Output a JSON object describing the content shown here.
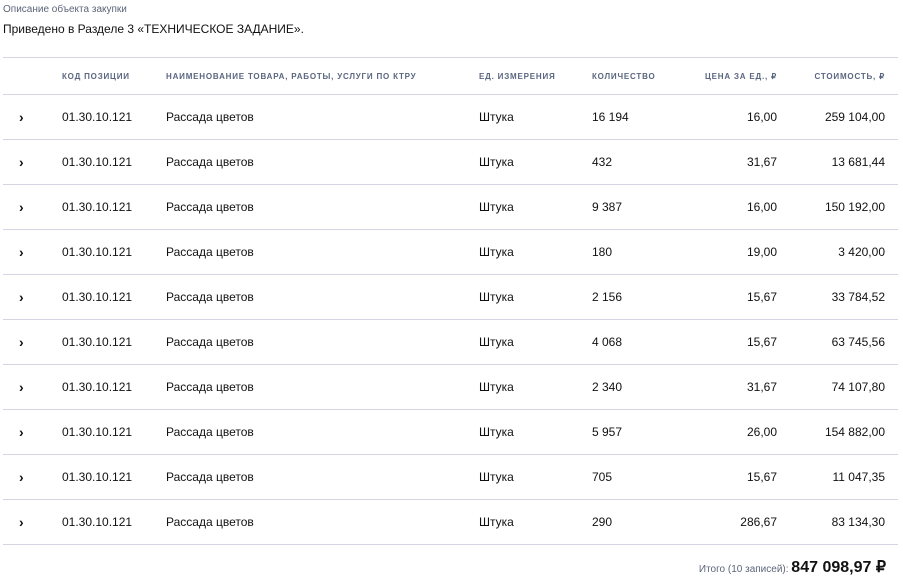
{
  "section": {
    "caption": "Описание объекта закупки",
    "text": "Приведено в Разделе 3 «ТЕХНИЧЕСКОЕ ЗАДАНИЕ»."
  },
  "table": {
    "headers": {
      "code": "КОД ПОЗИЦИИ",
      "name": "НАИМЕНОВАНИЕ ТОВАРА, РАБОТЫ, УСЛУГИ ПО КТРУ",
      "unit": "ЕД. ИЗМЕРЕНИЯ",
      "qty": "КОЛИЧЕСТВО",
      "price": "ЦЕНА ЗА ЕД., ₽",
      "cost": "СТОИМОСТЬ, ₽"
    },
    "rows": [
      {
        "code": "01.30.10.121",
        "name": "Рассада цветов",
        "unit": "Штука",
        "qty": "16 194",
        "price": "16,00",
        "cost": "259 104,00"
      },
      {
        "code": "01.30.10.121",
        "name": "Рассада цветов",
        "unit": "Штука",
        "qty": "432",
        "price": "31,67",
        "cost": "13 681,44"
      },
      {
        "code": "01.30.10.121",
        "name": "Рассада цветов",
        "unit": "Штука",
        "qty": "9 387",
        "price": "16,00",
        "cost": "150 192,00"
      },
      {
        "code": "01.30.10.121",
        "name": "Рассада цветов",
        "unit": "Штука",
        "qty": "180",
        "price": "19,00",
        "cost": "3 420,00"
      },
      {
        "code": "01.30.10.121",
        "name": "Рассада цветов",
        "unit": "Штука",
        "qty": "2 156",
        "price": "15,67",
        "cost": "33 784,52"
      },
      {
        "code": "01.30.10.121",
        "name": "Рассада цветов",
        "unit": "Штука",
        "qty": "4 068",
        "price": "15,67",
        "cost": "63 745,56"
      },
      {
        "code": "01.30.10.121",
        "name": "Рассада цветов",
        "unit": "Штука",
        "qty": "2 340",
        "price": "31,67",
        "cost": "74 107,80"
      },
      {
        "code": "01.30.10.121",
        "name": "Рассада цветов",
        "unit": "Штука",
        "qty": "5 957",
        "price": "26,00",
        "cost": "154 882,00"
      },
      {
        "code": "01.30.10.121",
        "name": "Рассада цветов",
        "unit": "Штука",
        "qty": "705",
        "price": "15,67",
        "cost": "11 047,35"
      },
      {
        "code": "01.30.10.121",
        "name": "Рассада цветов",
        "unit": "Штука",
        "qty": "290",
        "price": "286,67",
        "cost": "83 134,30"
      }
    ]
  },
  "total": {
    "label": "Итого (10 записей):",
    "value": "847 098,97 ₽"
  }
}
